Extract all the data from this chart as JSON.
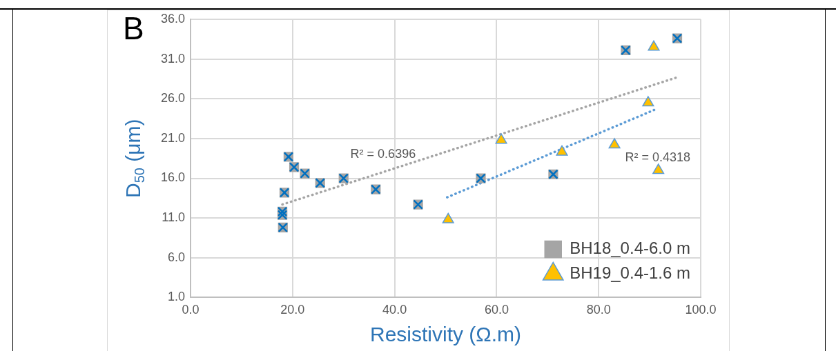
{
  "chart_data": {
    "type": "scatter",
    "title": "B",
    "xlabel": "Resistivity (Ω.m)",
    "ylabel": "D$_{50}$ (μm)",
    "xlim": [
      0,
      100
    ],
    "xticks": [
      {
        "value": 0,
        "label": "0.0"
      },
      {
        "value": 20,
        "label": "20.0"
      },
      {
        "value": 40,
        "label": "40.0"
      },
      {
        "value": 60,
        "label": "60.0"
      },
      {
        "value": 80,
        "label": "80.0"
      },
      {
        "value": 100,
        "label": "100.0"
      }
    ],
    "ylim": [
      1,
      36
    ],
    "yticks": [
      {
        "value": 1,
        "label": "1.0"
      },
      {
        "value": 6,
        "label": "6.0"
      },
      {
        "value": 11,
        "label": "11.0"
      },
      {
        "value": 16,
        "label": "16.0"
      },
      {
        "value": 21,
        "label": "21.0"
      },
      {
        "value": 26,
        "label": "26.0"
      },
      {
        "value": 31,
        "label": "31.0"
      },
      {
        "value": 36,
        "label": "36.0"
      }
    ],
    "grid": true,
    "legend": "bottom right",
    "series": [
      {
        "name": "BH18_0.4-6.0 m",
        "color": "#a5a5a5",
        "marker": "square",
        "x": [
          18.1,
          18.0,
          18.0,
          18.4,
          19.2,
          20.3,
          22.4,
          25.4,
          30.0,
          36.3,
          44.6,
          56.9,
          71.1,
          85.3,
          95.4
        ],
        "values": [
          9.8,
          11.4,
          11.8,
          14.2,
          18.7,
          17.4,
          16.6,
          15.4,
          16.0,
          14.6,
          12.7,
          16.0,
          16.5,
          32.1,
          33.6
        ]
      },
      {
        "name": "BH19_0.4-1.6 m",
        "color": "#ffc000",
        "marker": "triangle",
        "x": [
          50.5,
          60.9,
          72.8,
          83.1,
          89.7,
          90.8,
          91.7
        ],
        "values": [
          10.8,
          20.8,
          19.3,
          20.2,
          25.5,
          32.5,
          17.0
        ]
      },
      {
        "type": "line",
        "color": "#a5a5a5",
        "line_style": "dotted",
        "marker": "none",
        "x": [
          18.0,
          95.4
        ],
        "values": [
          12.7,
          28.7
        ]
      },
      {
        "type": "line",
        "color": "#5b9bd5",
        "line_style": "dotted",
        "marker": "none",
        "x": [
          50.3,
          90.9
        ],
        "values": [
          13.6,
          24.6
        ]
      }
    ],
    "annotations": [
      "R² = 0.6396",
      "R² = 0.4318"
    ]
  }
}
